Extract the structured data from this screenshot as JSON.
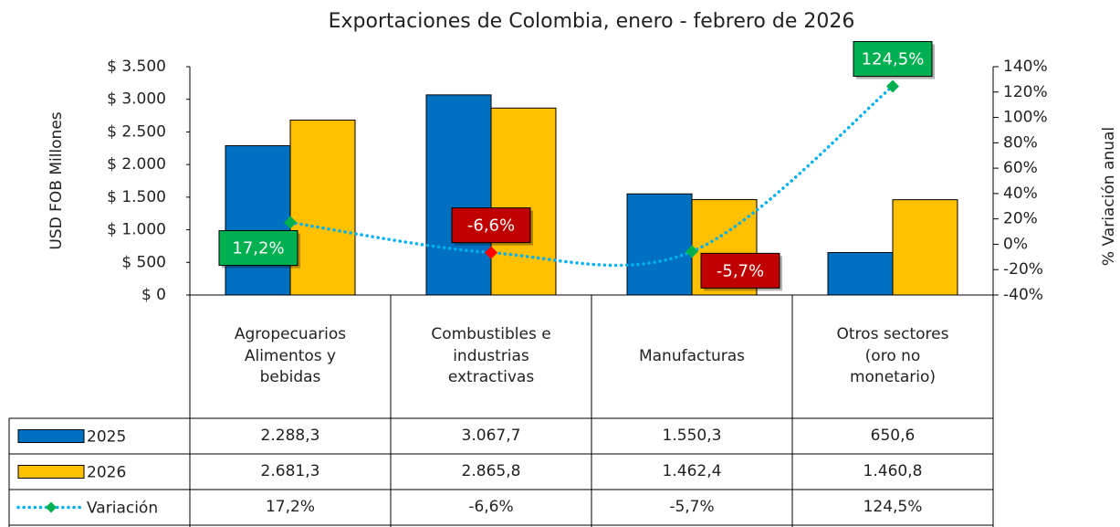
{
  "chart_data": {
    "type": "bar",
    "title": "Exportaciones de Colombia, enero - febrero de 2026",
    "y_label": "USD FOB Millones",
    "y2_label": "% Variación anual",
    "categories": [
      "Agropecuarios\nAlimentos y\nbebidas",
      "Combustibles e\nindustrias\nextractivas",
      "Manufacturas",
      "Otros sectores\n(oro no\nmonetario)"
    ],
    "series": [
      {
        "name": "2025",
        "type": "bar",
        "color": "#0070C0",
        "values": [
          2288.3,
          3067.7,
          1550.3,
          650.6
        ],
        "value_labels": [
          "2.288,3",
          "3.067,7",
          "1.550,3",
          "650,6"
        ]
      },
      {
        "name": "2026",
        "type": "bar",
        "color": "#FFC000",
        "values": [
          2681.3,
          2865.8,
          1462.4,
          1460.8
        ],
        "value_labels": [
          "2.681,3",
          "2.865,8",
          "1.462,4",
          "1.460,8"
        ]
      },
      {
        "name": "Variación",
        "type": "line",
        "axis": "y2",
        "color": "#00B0F0",
        "values": [
          17.2,
          -6.6,
          -5.7,
          124.5
        ],
        "value_labels": [
          "17,2%",
          "-6,6%",
          "-5,7%",
          "124,5%"
        ],
        "marker_colors": [
          "#00B050",
          "#FF0000",
          "#00B050",
          "#00B050"
        ],
        "label_colors": [
          "#00B050",
          "#C00000",
          "#C00000",
          "#00B050"
        ],
        "label_positions": [
          "left",
          "above",
          "right",
          "above"
        ]
      }
    ],
    "ylim": [
      0,
      3500
    ],
    "yticks": [
      {
        "value": 0,
        "label": "$ 0"
      },
      {
        "value": 500,
        "label": "$ 500"
      },
      {
        "value": 1000,
        "label": "$ 1.000"
      },
      {
        "value": 1500,
        "label": "$ 1.500"
      },
      {
        "value": 2000,
        "label": "$ 2.000"
      },
      {
        "value": 2500,
        "label": "$ 2.500"
      },
      {
        "value": 3000,
        "label": "$ 3.000"
      },
      {
        "value": 3500,
        "label": "$ 3.500"
      }
    ],
    "y2lim": [
      -40,
      140
    ],
    "y2ticks": [
      {
        "value": -40,
        "label": "-40%"
      },
      {
        "value": -20,
        "label": "-20%"
      },
      {
        "value": 0,
        "label": "0%"
      },
      {
        "value": 20,
        "label": "20%"
      },
      {
        "value": 40,
        "label": "40%"
      },
      {
        "value": 60,
        "label": "60%"
      },
      {
        "value": 80,
        "label": "80%"
      },
      {
        "value": 100,
        "label": "100%"
      },
      {
        "value": 120,
        "label": "120%"
      },
      {
        "value": 140,
        "label": "140%"
      }
    ]
  }
}
